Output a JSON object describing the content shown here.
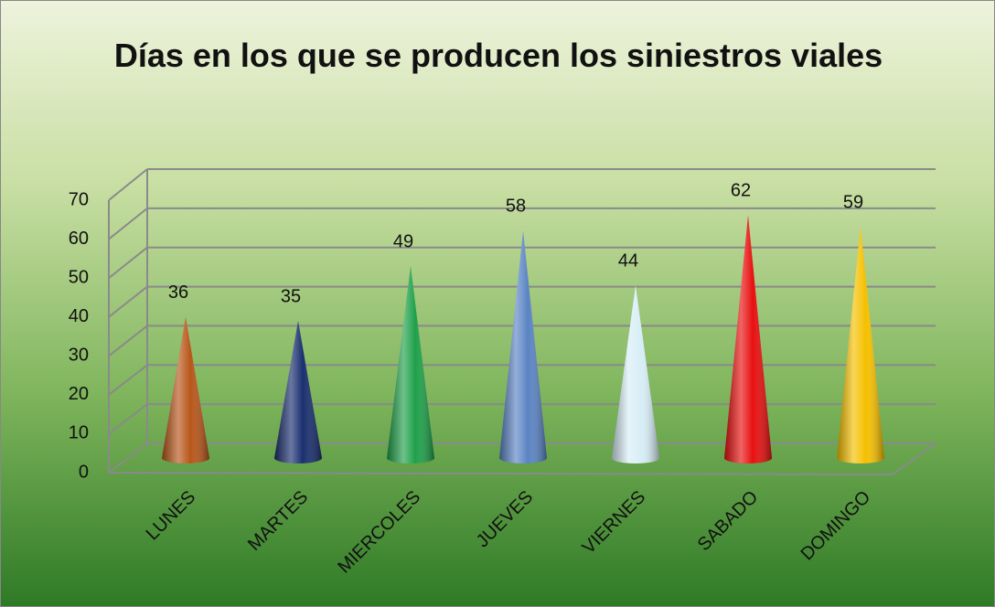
{
  "chart_data": {
    "type": "cone",
    "title": "Días en los que se producen los siniestros viales",
    "categories": [
      "LUNES",
      "MARTES",
      "MIERCOLES",
      "JUEVES",
      "VIERNES",
      "SABADO",
      "DOMINGO"
    ],
    "values": [
      36,
      35,
      49,
      58,
      44,
      62,
      59
    ],
    "colors": [
      "#b8561a",
      "#1a2f6e",
      "#1fa04a",
      "#5b84c4",
      "#d8eef7",
      "#e81010",
      "#f5c000"
    ],
    "ylim": [
      0,
      70
    ],
    "yticks": [
      0,
      10,
      20,
      30,
      40,
      50,
      60,
      70
    ],
    "grid": true
  }
}
